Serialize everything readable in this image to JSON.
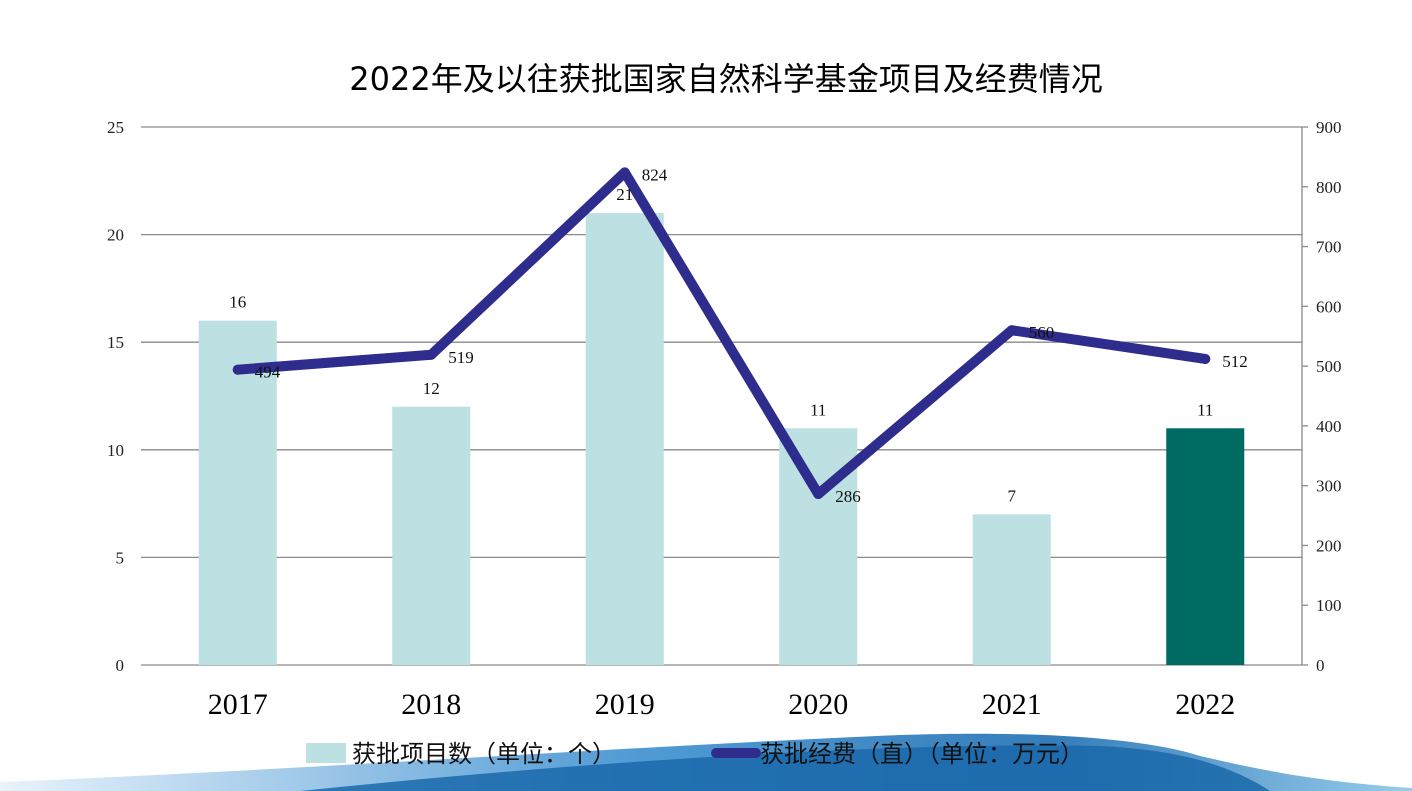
{
  "chart_data": {
    "type": "bar",
    "title": "2022年及以往获批国家自然科学基金项目及经费情况",
    "categories": [
      "2017",
      "2018",
      "2019",
      "2020",
      "2021",
      "2022"
    ],
    "series": [
      {
        "name": "获批项目数（单位：个）",
        "type": "bar",
        "axis": "left",
        "values": [
          16,
          12,
          21,
          11,
          7,
          11
        ]
      },
      {
        "name": "获批经费（直）（单位：万元）",
        "type": "line",
        "axis": "right",
        "values": [
          494,
          519,
          824,
          286,
          560,
          512
        ]
      }
    ],
    "ylim_left": [
      0,
      25
    ],
    "yticks_left": [
      0,
      5,
      10,
      15,
      20,
      25
    ],
    "ylim_right": [
      0,
      900
    ],
    "yticks_right": [
      0,
      100,
      200,
      300,
      400,
      500,
      600,
      700,
      800,
      900
    ],
    "grid": true,
    "legend": "bottom",
    "colors": {
      "bar": "#bde0e3",
      "bar_highlight": "#006b63",
      "line": "#2e2c8c",
      "grid": "#8a8a8a",
      "wave_dark": "#1f6fb2",
      "wave_light": "#cfe8f6"
    },
    "highlight_category": "2022"
  }
}
